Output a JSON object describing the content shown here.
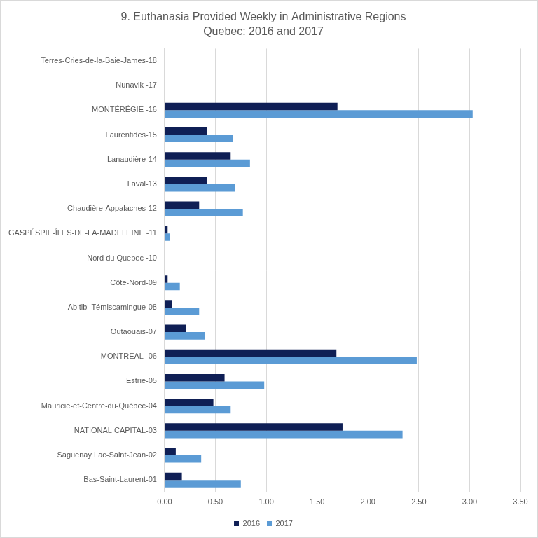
{
  "chart_data": {
    "type": "bar",
    "title": "9. Euthanasia Provided Weekly in Administrative Regions",
    "subtitle": "Quebec: 2016 and 2017",
    "orientation": "horizontal",
    "categories": [
      "Terres-Cries-de-la-Baie-James-18",
      "Nunavik -17",
      "MONTÉRÉGIE -16",
      "Laurentides-15",
      "Lanaudière-14",
      "Laval-13",
      "Chaudière-Appalaches-12",
      "GASPÉSPIE-ÎLES-DE-LA-MADELEINE -11",
      "Nord du Quebec -10",
      "Côte-Nord-09",
      "Abitibi-Témiscamingue-08",
      "Outaouais-07",
      "MONTREAL -06",
      "Estrie-05",
      "Mauricie-et-Centre-du-Québec-04",
      "NATIONAL CAPITAL-03",
      "Saguenay Lac-Saint-Jean-02",
      "Bas-Saint-Laurent-01"
    ],
    "series": [
      {
        "name": "2016",
        "color": "#0f1f55",
        "values": [
          0,
          0,
          1.7,
          0.42,
          0.65,
          0.42,
          0.34,
          0.03,
          0,
          0.03,
          0.07,
          0.21,
          1.69,
          0.59,
          0.48,
          1.75,
          0.11,
          0.17
        ]
      },
      {
        "name": "2017",
        "color": "#5b9bd5",
        "values": [
          0,
          0,
          3.03,
          0.67,
          0.84,
          0.69,
          0.77,
          0.05,
          0,
          0.15,
          0.34,
          0.4,
          2.48,
          0.98,
          0.65,
          2.34,
          0.36,
          0.75
        ]
      }
    ],
    "xlim": [
      0,
      3.5
    ],
    "xticks": [
      {
        "value": 0,
        "label": "0.00"
      },
      {
        "value": 0.5,
        "label": "0.50"
      },
      {
        "value": 1,
        "label": "1.00"
      },
      {
        "value": 1.5,
        "label": "1.50"
      },
      {
        "value": 2,
        "label": "2.00"
      },
      {
        "value": 2.5,
        "label": "2.50"
      },
      {
        "value": 3,
        "label": "3.00"
      },
      {
        "value": 3.5,
        "label": "3.50"
      }
    ],
    "grid": true,
    "legend": "bottom"
  }
}
